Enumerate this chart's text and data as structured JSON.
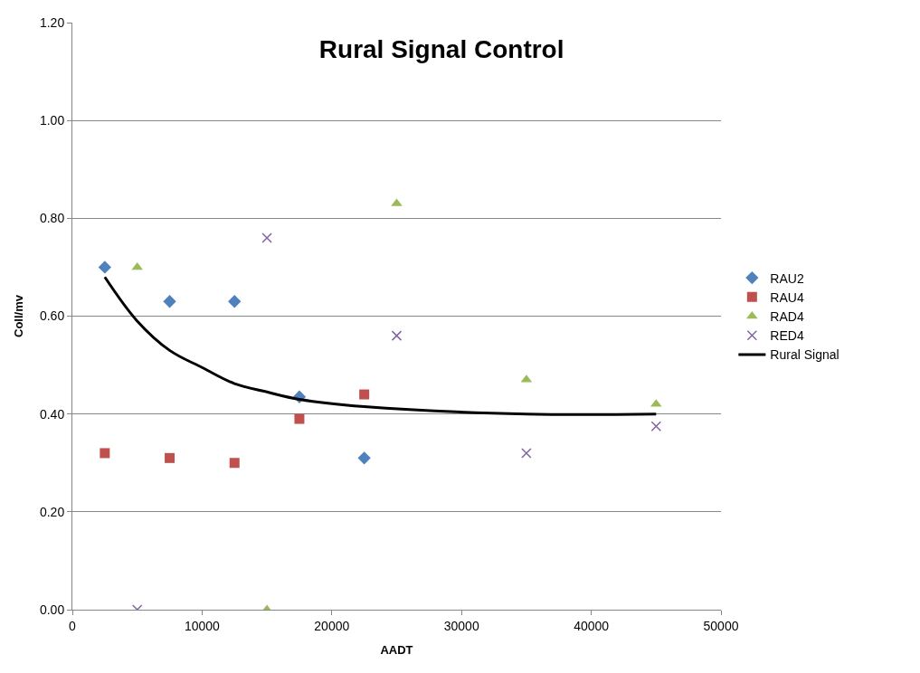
{
  "chart_data": {
    "type": "scatter",
    "title": "Rural Signal Control",
    "xlabel": "AADT",
    "ylabel": "Coll/mv",
    "xlim": [
      0,
      50000
    ],
    "xticks": [
      0,
      10000,
      20000,
      30000,
      40000,
      50000
    ],
    "ylim": [
      0,
      1.2
    ],
    "yticks": [
      {
        "value": 0,
        "label": "0.00"
      },
      {
        "value": 0.2,
        "label": "0.20"
      },
      {
        "value": 0.4,
        "label": "0.40"
      },
      {
        "value": 0.6,
        "label": "0.60"
      },
      {
        "value": 0.8,
        "label": "0.80"
      },
      {
        "value": 1.0,
        "label": "1.00"
      },
      {
        "value": 1.2,
        "label": "1.20"
      }
    ],
    "grid": "y",
    "legend": "right",
    "series": [
      {
        "name": "RAU2",
        "color": "#4f81bd",
        "marker": "diamond",
        "x": [
          2500,
          7500,
          12500,
          17500,
          22500
        ],
        "values": [
          0.7,
          0.63,
          0.63,
          0.435,
          0.31
        ]
      },
      {
        "name": "RAU4",
        "color": "#c0504d",
        "marker": "square",
        "x": [
          2500,
          7500,
          12500,
          17500,
          22500
        ],
        "values": [
          0.32,
          0.31,
          0.3,
          0.39,
          0.44
        ]
      },
      {
        "name": "RAD4",
        "color": "#9bbb59",
        "marker": "triangle",
        "x": [
          5000,
          15000,
          25000,
          35000,
          45000
        ],
        "values": [
          0.7,
          0.0,
          0.83,
          0.47,
          0.42
        ]
      },
      {
        "name": "RED4",
        "color": "#8064a2",
        "marker": "cross",
        "x": [
          5000,
          15000,
          25000,
          35000,
          45000
        ],
        "values": [
          0.0,
          0.76,
          0.56,
          0.32,
          0.375
        ]
      },
      {
        "name": "Rural Signal",
        "type": "line",
        "color": "#000000",
        "marker": "none",
        "line_style": "solid",
        "x": [
          2500,
          5000,
          7500,
          10000,
          12500,
          15000,
          17500,
          22500,
          35000,
          45000
        ],
        "values": [
          0.68,
          0.59,
          0.53,
          0.495,
          0.462,
          0.445,
          0.43,
          0.415,
          0.4,
          0.4
        ]
      }
    ]
  }
}
